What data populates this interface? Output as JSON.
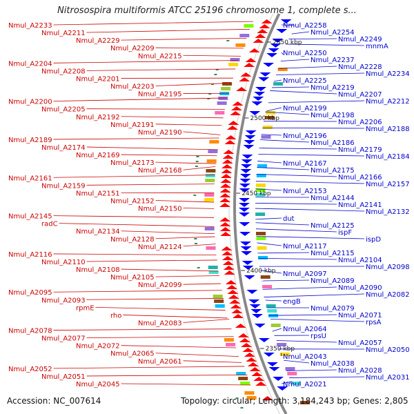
{
  "title": "Nitrosospira multiformis ATCC 25196 chromosome 1, complete s...",
  "footer": {
    "accession": "Accession: NC_007614",
    "topology": "Topology: circular; Length: 3,184,243 bp; Genes: 2,805"
  },
  "colors": {
    "left_label": "#cc0000",
    "right_label": "#0000cc",
    "backbone": "#888888",
    "forward_gene": "#ff0000",
    "reverse_gene": "#0000ff"
  },
  "ruler": [
    "2550 kbp",
    "2500 kbp",
    "2450 kbp",
    "2400 kbp",
    "2350 kbp"
  ],
  "left_labels": [
    "Nmul_A2233",
    "Nmul_A2211",
    "Nmul_A2229",
    "Nmul_A2209",
    "Nmul_A2215",
    "Nmul_A2204",
    "Nmul_A2208",
    "Nmul_A2201",
    "Nmul_A2203",
    "Nmul_A2195",
    "Nmul_A2200",
    "Nmul_A2205",
    "Nmul_A2192",
    "Nmul_A2191",
    "Nmul_A2190",
    "Nmul_A2189",
    "Nmul_A2174",
    "Nmul_A2169",
    "Nmul_A2173",
    "Nmul_A2168",
    "Nmul_A2161",
    "Nmul_A2159",
    "Nmul_A2151",
    "Nmul_A2152",
    "Nmul_A2150",
    "Nmul_A2145",
    "radC",
    "Nmul_A2134",
    "Nmul_A2128",
    "Nmul_A2124",
    "Nmul_A2116",
    "Nmul_A2110",
    "Nmul_A2108",
    "Nmul_A2105",
    "Nmul_A2099",
    "Nmul_A2095",
    "Nmul_A2093",
    "rpmE",
    "rho",
    "Nmul_A2083",
    "Nmul_A2078",
    "Nmul_A2077",
    "Nmul_A2072",
    "Nmul_A2065",
    "Nmul_A2061",
    "Nmul_A2052",
    "Nmul_A2051",
    "Nmul_A2045"
  ],
  "right_labels": [
    "Nmul_A2258",
    "Nmul_A2254",
    "Nmul_A2249",
    "mnmA",
    "Nmul_A2250",
    "Nmul_A2237",
    "Nmul_A2228",
    "Nmul_A2234",
    "Nmul_A2225",
    "Nmul_A2219",
    "Nmul_A2207",
    "Nmul_A2212",
    "Nmul_A2199",
    "Nmul_A2198",
    "Nmul_A2206",
    "Nmul_A2188",
    "Nmul_A2196",
    "Nmul_A2186",
    "Nmul_A2179",
    "Nmul_A2184",
    "Nmul_A2167",
    "Nmul_A2175",
    "Nmul_A2166",
    "Nmul_A2157",
    "Nmul_A2153",
    "Nmul_A2144",
    "Nmul_A2141",
    "Nmul_A2132",
    "dut",
    "Nmul_A2125",
    "ispF",
    "ispD",
    "Nmul_A2117",
    "Nmul_A2115",
    "Nmul_A2104",
    "Nmul_A2098",
    "Nmul_A2097",
    "Nmul_A2089",
    "Nmul_A2090",
    "Nmul_A2082",
    "engB",
    "Nmul_A2079",
    "Nmul_A2071",
    "rpsA",
    "Nmul_A2064",
    "rpsU",
    "Nmul_A2057",
    "Nmul_A2050",
    "Nmul_A2043",
    "Nmul_A2038",
    "Nmul_A2028",
    "Nmul_A2031",
    "Nmul_A2021"
  ]
}
